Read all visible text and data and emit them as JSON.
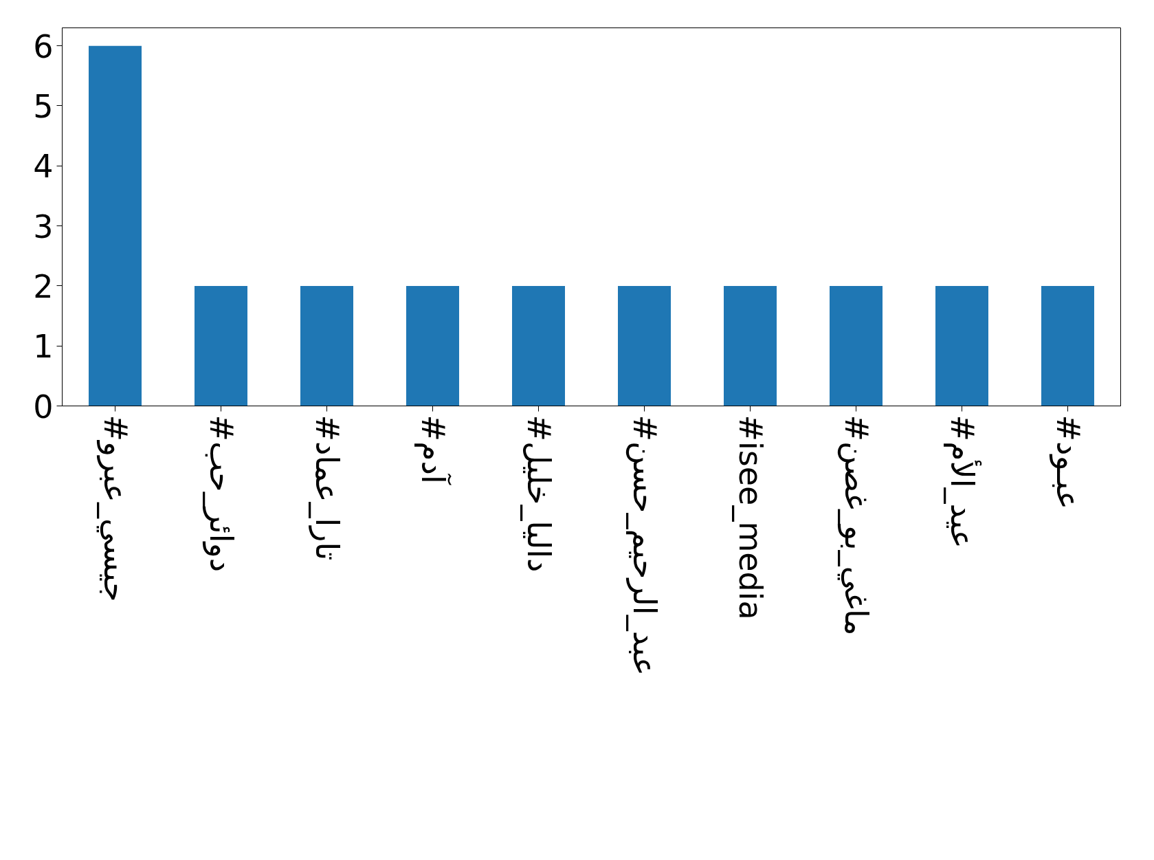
{
  "chart_data": {
    "type": "bar",
    "categories": [
      "#جيسي_عبرو",
      "#دوائر_حب",
      "#تارا_عماد",
      "#آدم",
      "#داليا_خليل",
      "#عبد_الرحيم_حسن",
      "#isee_media",
      "#ماغي_بو_غصن",
      "#عيد_الأم",
      "#عبـود"
    ],
    "values": [
      6,
      2,
      2,
      2,
      2,
      2,
      2,
      2,
      2,
      2
    ],
    "color": "#1f77b4",
    "ylim": [
      0,
      6.3
    ],
    "yticks": [
      0,
      1,
      2,
      3,
      4,
      5,
      6
    ],
    "grid": false
  }
}
